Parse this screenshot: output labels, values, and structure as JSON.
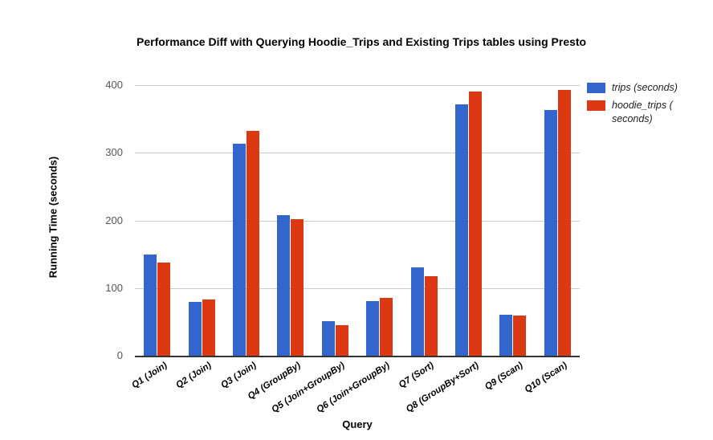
{
  "chart_data": {
    "type": "bar",
    "title": "Performance Diff with Querying Hoodie_Trips and Existing Trips tables using Presto",
    "xlabel": "Query",
    "ylabel": "Running Time (seconds)",
    "ylim": [
      0,
      400
    ],
    "yticks": [
      0,
      100,
      200,
      300,
      400
    ],
    "grid": true,
    "legend_position": "right",
    "background_color": "#ffffff",
    "gridline_color": "#cccccc",
    "axis_line_color": "#333333",
    "categories": [
      "Q1 (Join)",
      "Q2 (Join)",
      "Q3 (Join)",
      "Q4 (GroupBy)",
      "Q5 (Join+GroupBy)",
      "Q6 (Join+GroupBy)",
      "Q7 (Sort)",
      "Q8 (GroupBy+Sort)",
      "Q9 (Scan)",
      "Q10 (Scan)"
    ],
    "series": [
      {
        "name": "trips (seconds)",
        "color": "#3366CC",
        "values": [
          150,
          80,
          313,
          208,
          51,
          81,
          130,
          371,
          60,
          363
        ]
      },
      {
        "name": "hoodie_trips ( seconds)",
        "color": "#DC3912",
        "values": [
          138,
          83,
          332,
          202,
          45,
          85,
          117,
          390,
          59,
          393
        ]
      }
    ]
  }
}
